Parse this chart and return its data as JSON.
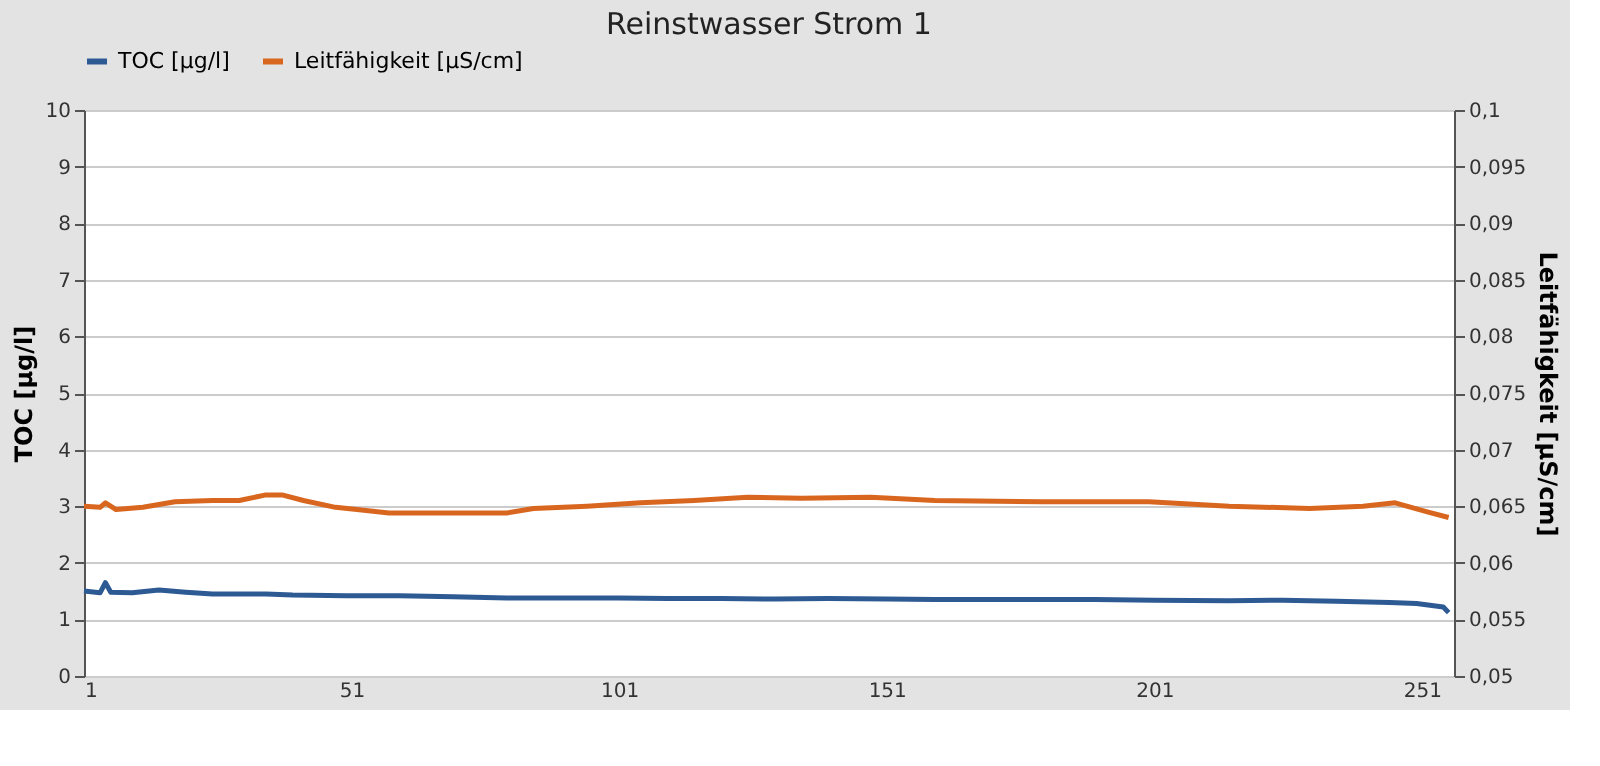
{
  "chart_data": {
    "type": "line",
    "title": "Reinstwasser Strom 1",
    "ylabel": "TOC [µg/l]",
    "y2label": "Leitfähigkeit [µS/cm]",
    "xlim": [
      1,
      257
    ],
    "xticks": [
      1,
      51,
      101,
      151,
      201,
      251
    ],
    "ylim": [
      0,
      10
    ],
    "yticks": [
      0,
      1,
      2,
      3,
      4,
      5,
      6,
      7,
      8,
      9,
      10
    ],
    "y2lim": [
      0.05,
      0.1
    ],
    "y2ticks": [
      {
        "value": 0.05,
        "label": "0,05"
      },
      {
        "value": 0.055,
        "label": "0,055"
      },
      {
        "value": 0.06,
        "label": "0,06"
      },
      {
        "value": 0.065,
        "label": "0,065"
      },
      {
        "value": 0.07,
        "label": "0,07"
      },
      {
        "value": 0.075,
        "label": "0,075"
      },
      {
        "value": 0.08,
        "label": "0,08"
      },
      {
        "value": 0.085,
        "label": "0,085"
      },
      {
        "value": 0.09,
        "label": "0,09"
      },
      {
        "value": 0.095,
        "label": "0,095"
      },
      {
        "value": 0.1,
        "label": "0,1"
      }
    ],
    "grid": "y",
    "legend": "top",
    "marker": "none",
    "line_style": "solid",
    "series": [
      {
        "name": "TOC [µg/l]",
        "color": "#2e5a94",
        "x": [
          1,
          4,
          5,
          6,
          10,
          15,
          20,
          25,
          30,
          35,
          40,
          50,
          60,
          70,
          80,
          90,
          101,
          110,
          120,
          130,
          140,
          151,
          160,
          175,
          190,
          201,
          215,
          225,
          235,
          245,
          250,
          255,
          256
        ],
        "values": [
          1.5,
          1.47,
          1.65,
          1.48,
          1.47,
          1.52,
          1.48,
          1.45,
          1.45,
          1.45,
          1.43,
          1.42,
          1.42,
          1.4,
          1.38,
          1.38,
          1.38,
          1.37,
          1.37,
          1.36,
          1.37,
          1.36,
          1.35,
          1.35,
          1.35,
          1.34,
          1.33,
          1.34,
          1.32,
          1.3,
          1.28,
          1.22,
          1.12
        ]
      },
      {
        "name": "Leitfähigkeit [µS/cm]",
        "color": "#d9661f",
        "axis": "y2",
        "x": [
          1,
          4,
          5,
          7,
          12,
          18,
          25,
          30,
          35,
          38,
          42,
          48,
          52,
          58,
          75,
          80,
          85,
          95,
          105,
          115,
          125,
          135,
          148,
          160,
          180,
          200,
          215,
          230,
          240,
          246,
          252,
          256
        ],
        "values": [
          0.065,
          0.0649,
          0.0653,
          0.0647,
          0.0649,
          0.0654,
          0.0655,
          0.0655,
          0.066,
          0.066,
          0.0655,
          0.0649,
          0.0647,
          0.0644,
          0.0644,
          0.0644,
          0.0648,
          0.065,
          0.0653,
          0.0655,
          0.0658,
          0.0657,
          0.0658,
          0.0655,
          0.0654,
          0.0654,
          0.065,
          0.0648,
          0.065,
          0.0653,
          0.0645,
          0.064
        ]
      }
    ]
  }
}
